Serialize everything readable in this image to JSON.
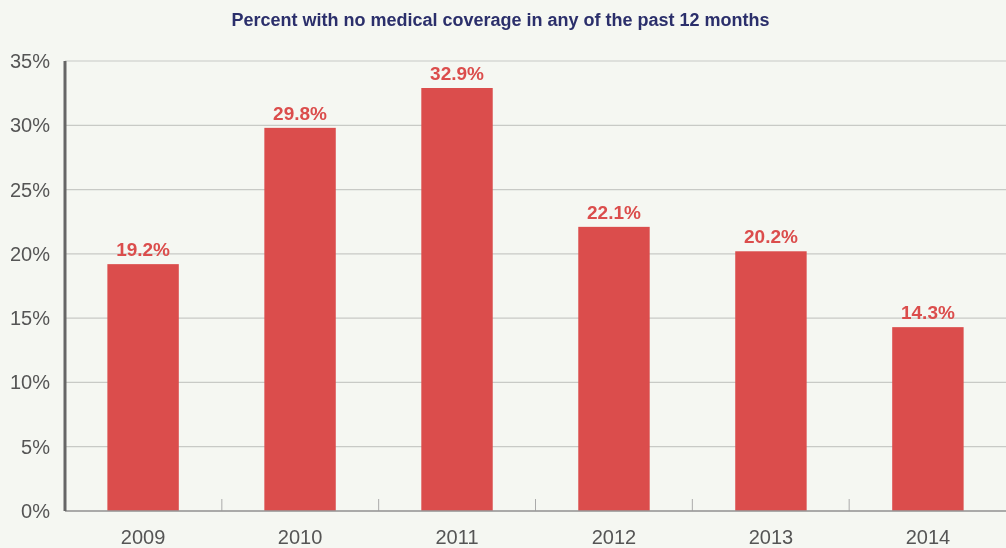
{
  "chart_data": {
    "type": "bar",
    "title": "Percent with no medical coverage in any of the past 12 months",
    "categories": [
      "2009",
      "2010",
      "2011",
      "2012",
      "2013",
      "2014"
    ],
    "values": [
      19.2,
      29.8,
      32.9,
      22.1,
      20.2,
      14.3
    ],
    "value_labels": [
      "19.2%",
      "29.8%",
      "32.9%",
      "22.1%",
      "20.2%",
      "14.3%"
    ],
    "color": "#db4d4c",
    "ylim": [
      0,
      35
    ],
    "yticks": [
      {
        "value": 0,
        "label": "0%"
      },
      {
        "value": 5,
        "label": "5%"
      },
      {
        "value": 10,
        "label": "10%"
      },
      {
        "value": 15,
        "label": "15%"
      },
      {
        "value": 20,
        "label": "20%"
      },
      {
        "value": 25,
        "label": "25%"
      },
      {
        "value": 30,
        "label": "30%"
      },
      {
        "value": 35,
        "label": "35%"
      }
    ],
    "grid": "y"
  }
}
